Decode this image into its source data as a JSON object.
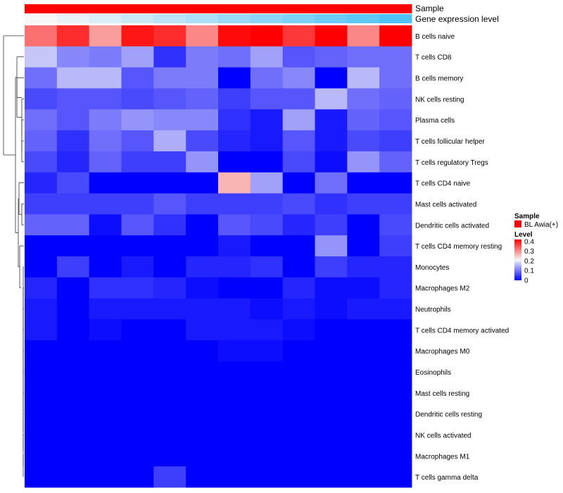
{
  "chart_data": {
    "type": "heatmap",
    "rows": [
      "B cells naive",
      "T cells CD8",
      "B cells memory",
      "NK cells resting",
      "Plasma cells",
      "T cells follicular helper",
      "T cells regulatory  Tregs",
      "T cells CD4 naive",
      "Mast cells activated",
      "Dendritic cells activated",
      "T cells CD4 memory resting",
      "Monocytes",
      "Macrophages M2",
      "Neutrophils",
      "T cells CD4 memory activated",
      "Macrophages M0",
      "Eosinophils",
      "Mast cells resting",
      "Dendritic cells resting",
      "NK cells activated",
      "Macrophages M1",
      "T cells gamma delta"
    ],
    "values": [
      [
        0.32,
        0.38,
        0.28,
        0.4,
        0.38,
        0.3,
        0.41,
        0.42,
        0.37,
        0.42,
        0.3,
        0.42
      ],
      [
        0.16,
        0.11,
        0.1,
        0.13,
        0.04,
        0.1,
        0.09,
        0.13,
        0.07,
        0.08,
        0.09,
        0.09
      ],
      [
        0.09,
        0.15,
        0.15,
        0.07,
        0.1,
        0.1,
        0.0,
        0.09,
        0.11,
        0.0,
        0.15,
        0.09
      ],
      [
        0.06,
        0.07,
        0.07,
        0.06,
        0.07,
        0.08,
        0.05,
        0.07,
        0.07,
        0.15,
        0.09,
        0.08
      ],
      [
        0.09,
        0.07,
        0.1,
        0.12,
        0.11,
        0.11,
        0.04,
        0.02,
        0.13,
        0.02,
        0.08,
        0.07
      ],
      [
        0.08,
        0.04,
        0.09,
        0.07,
        0.14,
        0.06,
        0.03,
        0.02,
        0.07,
        0.02,
        0.06,
        0.05
      ],
      [
        0.06,
        0.03,
        0.08,
        0.05,
        0.05,
        0.12,
        0.0,
        0.0,
        0.06,
        0.01,
        0.12,
        0.08
      ],
      [
        0.03,
        0.06,
        0.0,
        0.0,
        0.0,
        0.0,
        0.26,
        0.13,
        0.0,
        0.09,
        0.0,
        0.0
      ],
      [
        0.05,
        0.05,
        0.05,
        0.05,
        0.07,
        0.05,
        0.05,
        0.05,
        0.06,
        0.04,
        0.05,
        0.05
      ],
      [
        0.08,
        0.08,
        0.01,
        0.07,
        0.04,
        0.0,
        0.07,
        0.06,
        0.03,
        0.05,
        0.0,
        0.06
      ],
      [
        0.0,
        0.0,
        0.0,
        0.0,
        0.0,
        0.0,
        0.02,
        0.0,
        0.0,
        0.12,
        0.0,
        0.05
      ],
      [
        0.0,
        0.05,
        0.0,
        0.02,
        0.0,
        0.03,
        0.03,
        0.04,
        0.0,
        0.05,
        0.03,
        0.03
      ],
      [
        0.03,
        0.0,
        0.04,
        0.04,
        0.03,
        0.01,
        0.0,
        0.0,
        0.03,
        0.01,
        0.01,
        0.03
      ],
      [
        0.02,
        0.0,
        0.02,
        0.02,
        0.02,
        0.02,
        0.02,
        0.01,
        0.02,
        0.01,
        0.02,
        0.02
      ],
      [
        0.02,
        0.0,
        0.01,
        0.0,
        0.0,
        0.02,
        0.02,
        0.02,
        0.01,
        0.0,
        0.0,
        0.0
      ],
      [
        0.0,
        0.0,
        0.0,
        0.0,
        0.0,
        0.0,
        0.01,
        0.01,
        0.0,
        0.0,
        0.0,
        0.0
      ],
      [
        0.0,
        0.0,
        0.0,
        0.0,
        0.0,
        0.0,
        0.0,
        0.0,
        0.0,
        0.0,
        0.0,
        0.0
      ],
      [
        0.0,
        0.0,
        0.0,
        0.0,
        0.0,
        0.0,
        0.0,
        0.0,
        0.0,
        0.0,
        0.0,
        0.0
      ],
      [
        0.0,
        0.0,
        0.0,
        0.0,
        0.0,
        0.0,
        0.0,
        0.0,
        0.0,
        0.0,
        0.0,
        0.0
      ],
      [
        0.0,
        0.0,
        0.0,
        0.0,
        0.0,
        0.0,
        0.0,
        0.0,
        0.0,
        0.0,
        0.0,
        0.0
      ],
      [
        0.0,
        0.0,
        0.0,
        0.0,
        0.0,
        0.0,
        0.0,
        0.0,
        0.0,
        0.0,
        0.0,
        0.0
      ],
      [
        0.0,
        0.0,
        0.0,
        0.0,
        0.05,
        0.0,
        0.0,
        0.0,
        0.0,
        0.0,
        0.0,
        0.0
      ]
    ],
    "annotations": [
      {
        "label": "Sample",
        "values": [
          "BL Awia(+)",
          "BL Awia(+)",
          "BL Awia(+)",
          "BL Awia(+)",
          "BL Awia(+)",
          "BL Awia(+)",
          "BL Awia(+)",
          "BL Awia(+)",
          "BL Awia(+)",
          "BL Awia(+)",
          "BL Awia(+)",
          "BL Awia(+)"
        ]
      },
      {
        "label": "Gene expression level",
        "values": [
          0.0,
          0.09,
          0.18,
          0.27,
          0.36,
          0.45,
          0.55,
          0.64,
          0.73,
          0.82,
          0.91,
          1.0
        ]
      }
    ],
    "legend": {
      "sample_title": "Sample",
      "sample_entries": [
        {
          "label": "BL Awia(+)",
          "color": "#ff0000"
        }
      ],
      "level_title": "Level",
      "level_ticks": [
        "0.4",
        "0.3",
        "0.2",
        "0.1",
        "0"
      ],
      "level_tick_values": [
        0.4,
        0.3,
        0.2,
        0.1,
        0.0
      ],
      "placement": "right"
    },
    "color_scale": {
      "min": 0,
      "mid": 0.2,
      "max": 0.42,
      "low_color": "#0000ff",
      "mid_color": "#f7f7f7",
      "high_color": "#ff0000"
    },
    "gene_level_colors": [
      "#f7f7f7",
      "#4fc3f7"
    ],
    "row_dendrogram": true
  }
}
